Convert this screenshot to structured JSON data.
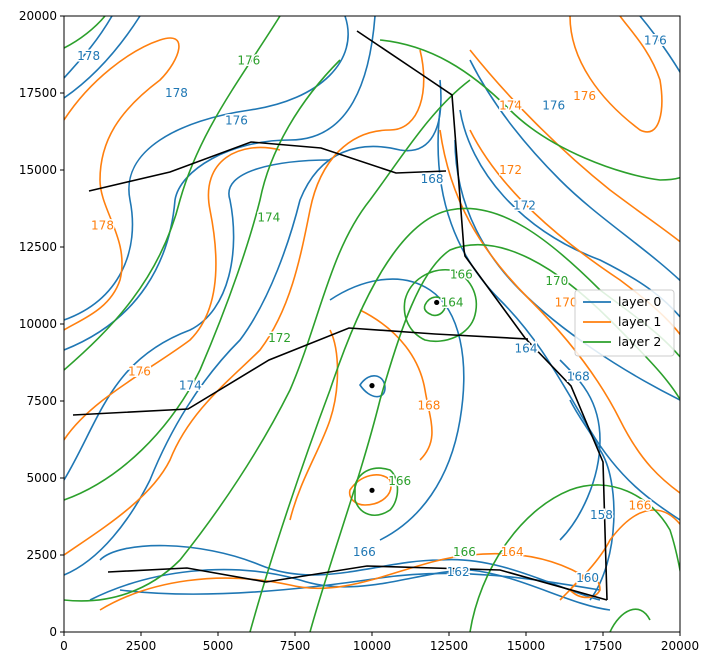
{
  "chart_data": {
    "type": "line",
    "title": "",
    "xlabel": "",
    "ylabel": "",
    "xlim": [
      0,
      20000
    ],
    "ylim": [
      0,
      20000
    ],
    "x_ticks": [
      "0",
      "2500",
      "5000",
      "7500",
      "10000",
      "12500",
      "15000",
      "17500",
      "20000"
    ],
    "y_ticks": [
      "0",
      "2500",
      "5000",
      "7500",
      "10000",
      "12500",
      "15000",
      "17500",
      "20000"
    ],
    "legend_position": "center-right",
    "series": [
      {
        "name": "layer 0",
        "color": "#1f77b4"
      },
      {
        "name": "layer 1",
        "color": "#ff7f0e"
      },
      {
        "name": "layer 2",
        "color": "#2ca02c"
      }
    ],
    "contour_labels": [
      {
        "text": "178",
        "x": 800,
        "y": 18700,
        "series": 0
      },
      {
        "text": "178",
        "x": 3650,
        "y": 17500,
        "series": 0
      },
      {
        "text": "176",
        "x": 5600,
        "y": 16600,
        "series": 0
      },
      {
        "text": "176",
        "x": 19200,
        "y": 19200,
        "series": 0
      },
      {
        "text": "176",
        "x": 15900,
        "y": 17100,
        "series": 0
      },
      {
        "text": "168",
        "x": 11950,
        "y": 14700,
        "series": 0
      },
      {
        "text": "172",
        "x": 14950,
        "y": 13850,
        "series": 0
      },
      {
        "text": "174",
        "x": 4100,
        "y": 8000,
        "series": 0
      },
      {
        "text": "164",
        "x": 15000,
        "y": 9200,
        "series": 0
      },
      {
        "text": "168",
        "x": 16700,
        "y": 8300,
        "series": 0
      },
      {
        "text": "166",
        "x": 9750,
        "y": 2600,
        "series": 0
      },
      {
        "text": "162",
        "x": 12800,
        "y": 1950,
        "series": 0
      },
      {
        "text": "158",
        "x": 17450,
        "y": 3800,
        "series": 0
      },
      {
        "text": "160",
        "x": 17000,
        "y": 1750,
        "series": 0
      },
      {
        "text": "178",
        "x": 1250,
        "y": 13200,
        "series": 1
      },
      {
        "text": "176",
        "x": 2450,
        "y": 8450,
        "series": 1
      },
      {
        "text": "174",
        "x": 14500,
        "y": 17100,
        "series": 1
      },
      {
        "text": "176",
        "x": 16900,
        "y": 17400,
        "series": 1
      },
      {
        "text": "172",
        "x": 14500,
        "y": 15000,
        "series": 1
      },
      {
        "text": "170",
        "x": 16300,
        "y": 10700,
        "series": 1
      },
      {
        "text": "168",
        "x": 11850,
        "y": 7350,
        "series": 1
      },
      {
        "text": "164",
        "x": 14550,
        "y": 2600,
        "series": 1
      },
      {
        "text": "166",
        "x": 18700,
        "y": 4100,
        "series": 1
      },
      {
        "text": "176",
        "x": 6000,
        "y": 18550,
        "series": 2
      },
      {
        "text": "174",
        "x": 6650,
        "y": 13450,
        "series": 2
      },
      {
        "text": "172",
        "x": 7000,
        "y": 9550,
        "series": 2
      },
      {
        "text": "166",
        "x": 12900,
        "y": 11600,
        "series": 2
      },
      {
        "text": "164",
        "x": 12600,
        "y": 10700,
        "series": 2
      },
      {
        "text": "170",
        "x": 16000,
        "y": 11400,
        "series": 2
      },
      {
        "text": "166",
        "x": 10900,
        "y": 4900,
        "series": 2
      },
      {
        "text": "166",
        "x": 13000,
        "y": 2600,
        "series": 2
      }
    ],
    "points": [
      {
        "x": 12100,
        "y": 10700
      },
      {
        "x": 10000,
        "y": 8000
      },
      {
        "x": 10000,
        "y": 4600
      }
    ]
  }
}
